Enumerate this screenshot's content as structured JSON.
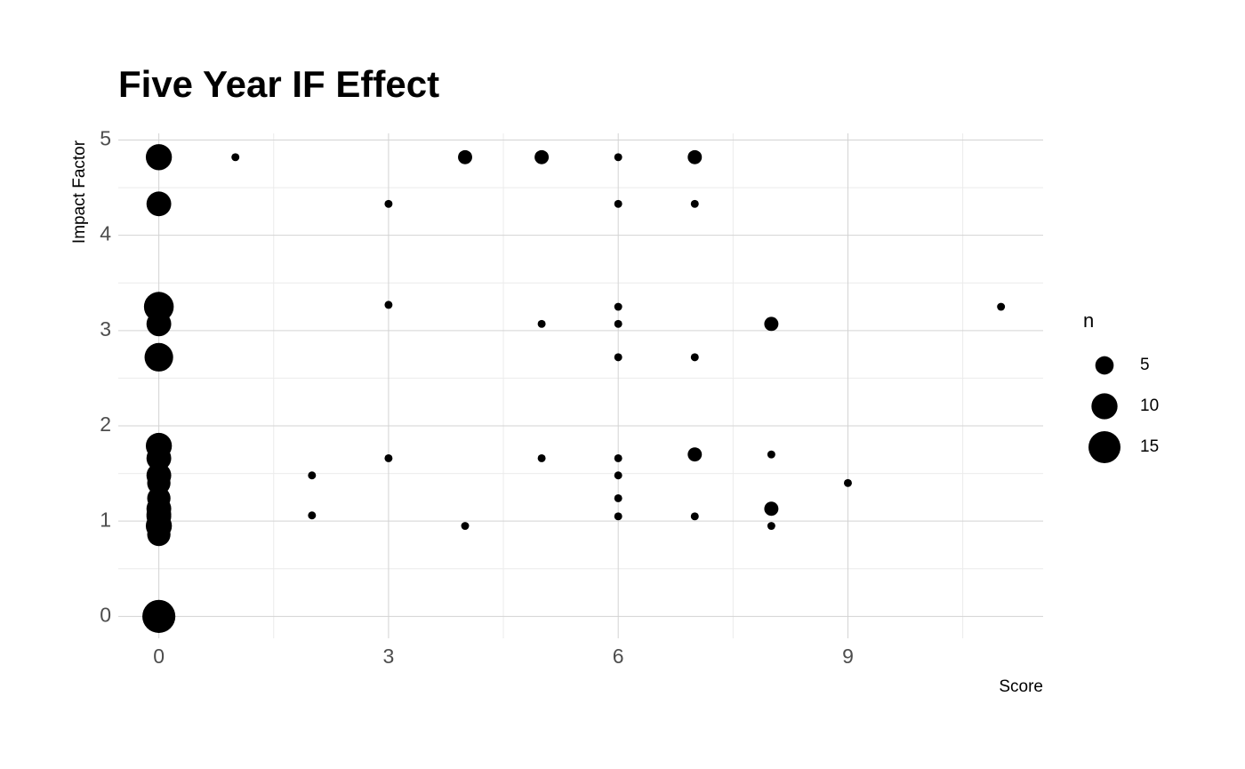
{
  "chart_data": {
    "type": "scatter",
    "title": "Five Year IF Effect",
    "x_label": "Score",
    "y_label": "Impact Factor",
    "xlim": [
      -0.53,
      11.55
    ],
    "ylim": [
      -0.23,
      5.07
    ],
    "xticks": [
      0,
      3,
      6,
      9
    ],
    "yticks": [
      0,
      1,
      2,
      3,
      4,
      5
    ],
    "grid": true,
    "color": "#000000",
    "series": [
      {
        "name": "n",
        "x": [
          0,
          0,
          0,
          0,
          0,
          0,
          0,
          0,
          0,
          0,
          0,
          0,
          0,
          0,
          0,
          0,
          1,
          2,
          2,
          3,
          3,
          3,
          4,
          4,
          5,
          5,
          5,
          6,
          6,
          6,
          6,
          6,
          6,
          6,
          6,
          6,
          7,
          7,
          7,
          7,
          7,
          8,
          8,
          8,
          8,
          9,
          11
        ],
        "y": [
          4.82,
          4.33,
          3.25,
          3.07,
          2.72,
          1.79,
          1.66,
          1.48,
          1.4,
          1.24,
          1.13,
          1.07,
          1.05,
          0.95,
          0.86,
          0,
          4.82,
          1.48,
          1.06,
          4.33,
          3.27,
          1.66,
          4.82,
          0.95,
          4.82,
          3.07,
          1.66,
          4.82,
          4.33,
          3.25,
          3.07,
          2.72,
          1.66,
          1.48,
          1.24,
          1.05,
          4.82,
          4.33,
          2.72,
          1.7,
          1.05,
          3.07,
          1.7,
          1.13,
          0.95,
          1.4,
          3.25
        ],
        "size": [
          10,
          9,
          13,
          9,
          12,
          10,
          9,
          9,
          8,
          8,
          9,
          9,
          9,
          10,
          8,
          16,
          1,
          1,
          1,
          1,
          1,
          1,
          3,
          1,
          3,
          1,
          1,
          1,
          1,
          1,
          1,
          1,
          1,
          1,
          1,
          1,
          3,
          1,
          1,
          3,
          1,
          3,
          1,
          3,
          1,
          1,
          1
        ]
      }
    ],
    "size_legend": {
      "title": "n",
      "values": [
        5,
        10,
        15
      ]
    }
  }
}
